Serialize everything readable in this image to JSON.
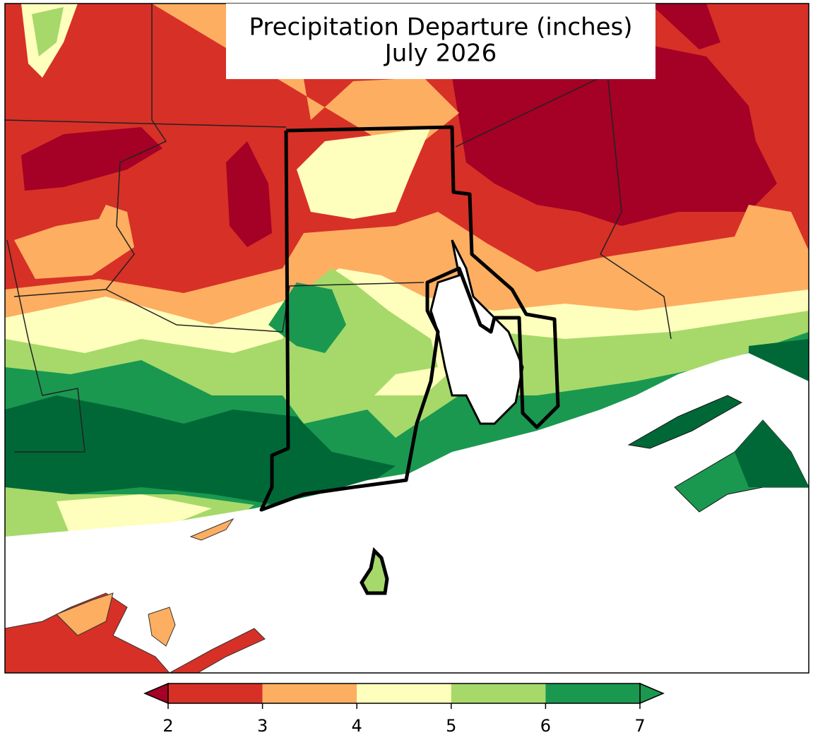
{
  "map": {
    "title": [
      "Precipitation Departure (inches)",
      "July 2026"
    ]
  },
  "colorbar": {
    "ticks": [
      2,
      3,
      4,
      5,
      6,
      7
    ],
    "colors": [
      "#d73027",
      "#fdae61",
      "#fefebd",
      "#a6d96a",
      "#1a9850"
    ],
    "under_color": "#a50026",
    "over_color": "#1a9850"
  }
}
